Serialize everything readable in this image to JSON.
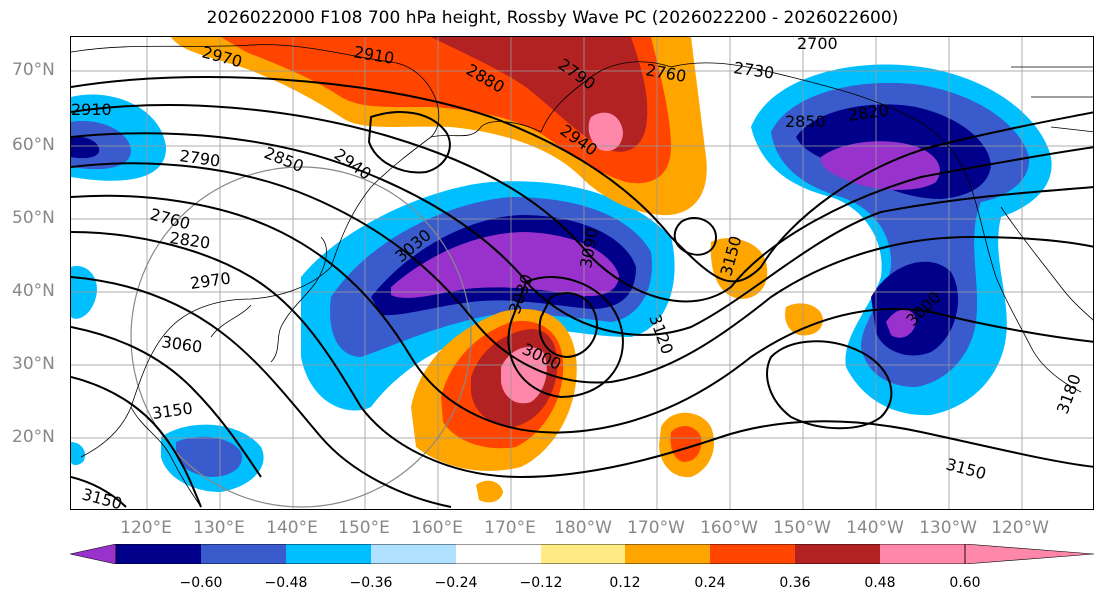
{
  "title": "2026022000 F108 700 hPa height, Rossby Wave PC (2026022200 - 2026022600)",
  "lat_labels": [
    "70°N",
    "60°N",
    "50°N",
    "40°N",
    "30°N",
    "20°N"
  ],
  "lon_labels": [
    "120°E",
    "130°E",
    "140°E",
    "150°E",
    "160°E",
    "170°E",
    "180°W",
    "170°W",
    "160°W",
    "150°W",
    "140°W",
    "130°W",
    "120°W"
  ],
  "contour_labels": [
    "2970",
    "2910",
    "2880",
    "2790",
    "2700",
    "2760",
    "2730",
    "2910",
    "2790",
    "2850",
    "2940",
    "2940",
    "2850",
    "2820",
    "2760",
    "2820",
    "2970",
    "3030",
    "3090",
    "3030",
    "3000",
    "3120",
    "3150",
    "3000",
    "3060",
    "3150",
    "3150",
    "3180",
    "3150"
  ],
  "colorbar": {
    "ticks": [
      "−0.60",
      "−0.48",
      "−0.36",
      "−0.24",
      "−0.12",
      "0.12",
      "0.24",
      "0.36",
      "0.48",
      "0.60"
    ],
    "colors": [
      "#9932CC",
      "#00008B",
      "#3A5BCC",
      "#00BFFF",
      "#B0E2FF",
      "#FFFFFF",
      "#FFEA84",
      "#FFA500",
      "#FF4500",
      "#B22222",
      "#FF88AA"
    ]
  }
}
